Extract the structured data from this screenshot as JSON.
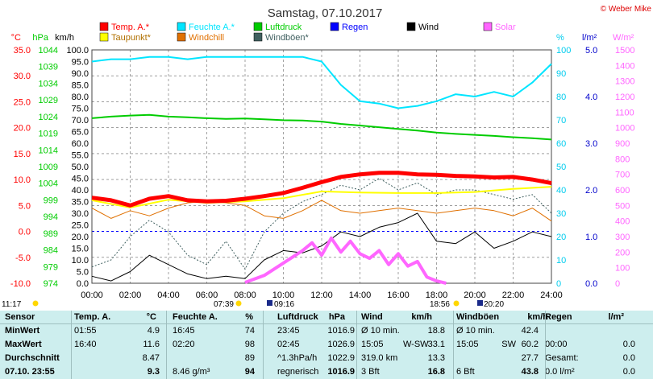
{
  "header": {
    "title": "Samstag, 07.10.2017",
    "credit": "© Weber Mike"
  },
  "colors": {
    "temp": "#ff0000",
    "humidity": "#00e5ff",
    "pressure": "#00cc00",
    "rain": "#0000ff",
    "wind": "#000000",
    "solar": "#ff66ff",
    "dewpoint": "#ffff00",
    "windchill": "#e07000",
    "gust": "#406060"
  },
  "legend": [
    {
      "key": "temp",
      "label": "Temp. A.*",
      "color": "#ff0000"
    },
    {
      "key": "humidity",
      "label": "Feuchte A.*",
      "color": "#00e5ff"
    },
    {
      "key": "pressure",
      "label": "Luftdruck",
      "color": "#00cc00"
    },
    {
      "key": "rain",
      "label": "Regen",
      "color": "#0000ff"
    },
    {
      "key": "wind",
      "label": "Wind",
      "color": "#000000"
    },
    {
      "key": "solar",
      "label": "Solar",
      "color": "#ff66ff"
    },
    {
      "key": "dewpoint",
      "label": "Taupunkt*",
      "color": "#ffff00"
    },
    {
      "key": "windchill",
      "label": "Windchill",
      "color": "#e07000"
    },
    {
      "key": "gust",
      "label": "Windböen*",
      "color": "#406060"
    }
  ],
  "chart_data": {
    "type": "line",
    "x_ticks": [
      "00:00",
      "02:00",
      "04:00",
      "06:00",
      "08:00",
      "10:00",
      "12:00",
      "14:00",
      "16:00",
      "18:00",
      "20:00",
      "22:00",
      "24:00"
    ],
    "axes": {
      "temp": {
        "unit": "°C",
        "ticks": [
          "35.0",
          "30.0",
          "25.0",
          "20.0",
          "15.0",
          "10.0",
          "5.0",
          "0.0",
          "-5.0",
          "-10.0"
        ],
        "min": -10,
        "max": 35
      },
      "pressure": {
        "unit": "hPa",
        "ticks": [
          "1044",
          "1039",
          "1034",
          "1029",
          "1024",
          "1019",
          "1014",
          "1009",
          "1004",
          "999",
          "994",
          "989",
          "984",
          "979",
          "974"
        ],
        "min": 974,
        "max": 1044
      },
      "wind": {
        "unit": "km/h",
        "ticks": [
          "100.0",
          "95.0",
          "90.0",
          "85.0",
          "80.0",
          "75.0",
          "70.0",
          "65.0",
          "60.0",
          "55.0",
          "50.0",
          "45.0",
          "40.0",
          "35.0",
          "30.0",
          "25.0",
          "20.0",
          "15.0",
          "10.0",
          "5.0",
          "0.0"
        ],
        "min": 0,
        "max": 100
      },
      "humidity": {
        "unit": "%",
        "ticks": [
          "100",
          "90",
          "80",
          "70",
          "60",
          "50",
          "40",
          "30",
          "20",
          "10",
          "0"
        ],
        "min": 0,
        "max": 100
      },
      "rain": {
        "unit": "l/m²",
        "ticks": [
          "5.0",
          "4.0",
          "3.0",
          "2.0",
          "1.0",
          "0.0"
        ],
        "min": 0,
        "max": 5
      },
      "solar": {
        "unit": "W/m²",
        "ticks": [
          "1500",
          "1400",
          "1300",
          "1200",
          "1100",
          "1000",
          "900",
          "800",
          "700",
          "600",
          "500",
          "400",
          "300",
          "200",
          "100",
          "0"
        ],
        "min": 0,
        "max": 1500
      }
    },
    "series": [
      {
        "key": "temp",
        "name": "Temp. A.*",
        "axis": "temp",
        "x": [
          0,
          1,
          2,
          3,
          4,
          5,
          6,
          7,
          8,
          9,
          10,
          11,
          12,
          13,
          14,
          15,
          16,
          17,
          18,
          19,
          20,
          21,
          22,
          23,
          24
        ],
        "y": [
          6.5,
          6.0,
          5.0,
          6.3,
          6.8,
          6.0,
          5.8,
          5.9,
          6.3,
          6.8,
          7.4,
          8.4,
          9.5,
          10.5,
          11.0,
          11.3,
          11.3,
          11.0,
          10.9,
          10.7,
          10.6,
          10.4,
          10.5,
          10.0,
          9.3
        ]
      },
      {
        "key": "humidity",
        "name": "Feuchte A.*",
        "axis": "humidity",
        "x": [
          0,
          1,
          2,
          3,
          4,
          5,
          6,
          7,
          8,
          9,
          10,
          11,
          12,
          13,
          14,
          15,
          16,
          17,
          18,
          19,
          20,
          21,
          22,
          23,
          24
        ],
        "y": [
          95,
          96,
          96,
          97,
          97,
          96,
          97,
          97,
          97,
          97,
          97,
          97,
          95,
          85,
          78,
          77,
          75,
          76,
          78,
          81,
          80,
          82,
          80,
          86,
          94
        ]
      },
      {
        "key": "pressure",
        "name": "Luftdruck",
        "axis": "pressure",
        "x": [
          0,
          1,
          2,
          3,
          4,
          5,
          6,
          7,
          8,
          9,
          10,
          11,
          12,
          13,
          14,
          15,
          16,
          17,
          18,
          19,
          20,
          21,
          22,
          23,
          24
        ],
        "y": [
          1023.5,
          1024,
          1024.3,
          1024.5,
          1024,
          1023.8,
          1023.5,
          1023.3,
          1023.4,
          1023.2,
          1022.9,
          1022.8,
          1022.5,
          1021.8,
          1021.3,
          1020.8,
          1020.3,
          1019.8,
          1019.2,
          1018.8,
          1018.5,
          1018.2,
          1017.8,
          1017.5,
          1017.1
        ]
      },
      {
        "key": "dewpoint",
        "name": "Taupunkt*",
        "axis": "temp",
        "x": [
          0,
          2,
          4,
          6,
          8,
          10,
          12,
          14,
          16,
          18,
          20,
          22,
          24
        ],
        "y": [
          6.0,
          4.6,
          6.1,
          5.5,
          5.8,
          6.4,
          7.7,
          7.5,
          7.4,
          7.4,
          7.6,
          8.2,
          8.6
        ]
      },
      {
        "key": "windchill",
        "name": "Windchill",
        "axis": "temp",
        "x": [
          0,
          1,
          2,
          3,
          4,
          5,
          6,
          7,
          8,
          9,
          10,
          11,
          12,
          13,
          14,
          15,
          16,
          17,
          18,
          19,
          20,
          21,
          22,
          23,
          24
        ],
        "y": [
          4.5,
          2.5,
          4.0,
          3.0,
          4.5,
          5.5,
          5.8,
          5.5,
          5.0,
          3.0,
          2.5,
          4.0,
          6.0,
          4.0,
          3.5,
          4.0,
          4.5,
          4.0,
          3.5,
          4.0,
          4.5,
          4.0,
          3.0,
          4.5,
          2.0
        ]
      },
      {
        "key": "wind",
        "name": "Wind",
        "axis": "wind",
        "x": [
          0,
          1,
          2,
          3,
          4,
          5,
          6,
          7,
          8,
          9,
          10,
          11,
          12,
          13,
          14,
          15,
          16,
          17,
          18,
          19,
          20,
          21,
          22,
          23,
          24
        ],
        "y": [
          3,
          1,
          5,
          12,
          8,
          4,
          2,
          3,
          2,
          10,
          14,
          13,
          16,
          22,
          20,
          24,
          26,
          30,
          18,
          17,
          22,
          15,
          18,
          22,
          20
        ]
      },
      {
        "key": "gust",
        "name": "Windböen*",
        "axis": "wind",
        "x": [
          0,
          1,
          2,
          3,
          4,
          5,
          6,
          7,
          8,
          9,
          10,
          11,
          12,
          13,
          14,
          15,
          16,
          17,
          18,
          19,
          20,
          21,
          22,
          23,
          24
        ],
        "y": [
          7,
          10,
          20,
          27,
          22,
          12,
          8,
          18,
          6,
          22,
          30,
          35,
          38,
          42,
          40,
          45,
          40,
          43,
          38,
          40,
          40,
          38,
          36,
          38,
          30
        ]
      },
      {
        "key": "solar",
        "name": "Solar",
        "axis": "solar",
        "x": [
          8,
          9,
          10,
          11,
          11.5,
          12,
          12.5,
          13,
          13.5,
          14,
          14.5,
          15,
          15.5,
          16,
          16.5,
          17,
          17.5,
          18,
          18.5
        ],
        "y": [
          5,
          50,
          130,
          210,
          260,
          180,
          290,
          200,
          270,
          190,
          160,
          210,
          120,
          190,
          110,
          140,
          40,
          15,
          0
        ]
      }
    ],
    "markers": {
      "sunrise": "07:39",
      "sunset": "18:56",
      "moonrise": "09:16",
      "moonset": "20:20",
      "current": "11:17"
    }
  },
  "table": {
    "headers": [
      "Sensor",
      "Temp. A.",
      "°C",
      "Feuchte A.",
      "%",
      "Luftdruck",
      "hPa",
      "Wind",
      "km/h",
      "Windböen",
      "km/h",
      "Regen",
      "l/m²"
    ],
    "rows": [
      {
        "label": "MinWert",
        "c": [
          "01:55",
          "4.9",
          "16:45",
          "74",
          "23:45",
          "1016.9",
          "Ø 10 min.",
          "",
          "18.8",
          "Ø 10 min.",
          "",
          "42.4",
          "",
          "",
          ""
        ]
      },
      {
        "label": "MaxWert",
        "c": [
          "16:40",
          "11.6",
          "02:20",
          "98",
          "02:45",
          "1026.9",
          "15:05",
          "W-SW",
          "33.1",
          "15:05",
          "SW",
          "60.2",
          "00:00",
          "",
          "0.0"
        ]
      },
      {
        "label": "Durchschnitt",
        "c": [
          "",
          "8.47",
          "",
          "89",
          "^1.3hPa/h",
          "1022.9",
          "319.0 km",
          "",
          "13.3",
          "",
          "",
          "27.7",
          "Gesamt:",
          "",
          "0.0"
        ]
      },
      {
        "label": "07.10. 23:55",
        "c": [
          "",
          "9.3",
          "8.46 g/m³",
          "94",
          "regnerisch",
          "1016.9",
          "3 Bft",
          "",
          "16.8",
          "6 Bft",
          "",
          "43.8",
          "0.0 l/m²",
          "",
          "0.0"
        ]
      }
    ]
  }
}
